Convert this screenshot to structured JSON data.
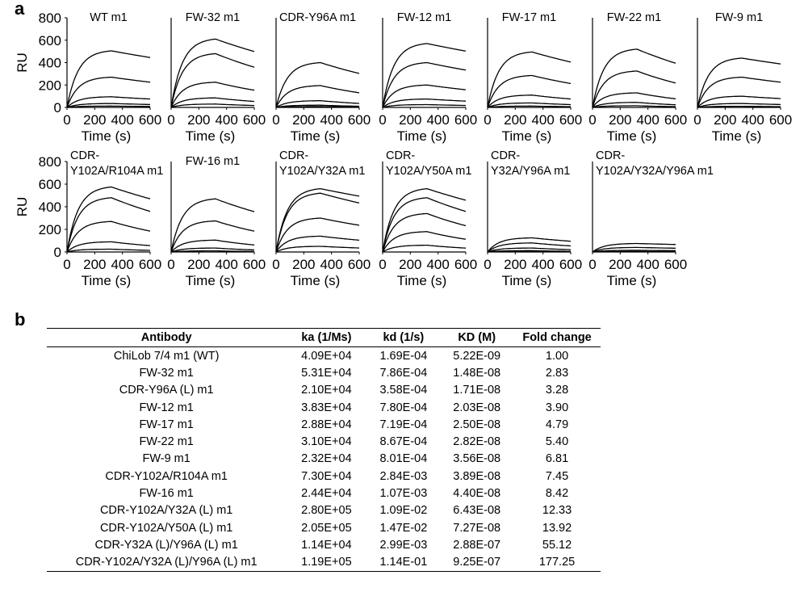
{
  "panel_labels": {
    "a": "a",
    "b": "b"
  },
  "colors": {
    "line": "#000000",
    "background": "#ffffff"
  },
  "chart_data": {
    "type": "line",
    "description_kind": "SPR sensorgram small multiples",
    "xlabel": "Time (s)",
    "ylabel": "RU",
    "xlim": [
      0,
      600
    ],
    "ylim": [
      0,
      800
    ],
    "xticks": [
      0,
      200,
      400,
      600
    ],
    "yticks": [
      0,
      200,
      400,
      600,
      800
    ],
    "dissociation_start": 320,
    "panels": [
      {
        "title": "WT m1",
        "row": 0,
        "col": 0,
        "peaks": [
          505,
          270,
          95,
          35,
          12
        ]
      },
      {
        "title": "FW-32 m1",
        "row": 0,
        "col": 1,
        "peaks": [
          610,
          480,
          225,
          85,
          30
        ]
      },
      {
        "title": "CDR-Y96A m1",
        "row": 0,
        "col": 2,
        "peaks": [
          400,
          195,
          60,
          20,
          8
        ]
      },
      {
        "title": "FW-12 m1",
        "row": 0,
        "col": 3,
        "peaks": [
          570,
          400,
          200,
          75,
          25
        ]
      },
      {
        "title": "FW-17 m1",
        "row": 0,
        "col": 4,
        "peaks": [
          495,
          285,
          110,
          40,
          12
        ]
      },
      {
        "title": "FW-22 m1",
        "row": 0,
        "col": 5,
        "peaks": [
          520,
          325,
          130,
          45,
          15
        ]
      },
      {
        "title": "FW-9 m1",
        "row": 0,
        "col": 6,
        "peaks": [
          440,
          270,
          100,
          35,
          10
        ]
      },
      {
        "title": "CDR-\nY102A/R104A m1",
        "row": 1,
        "col": 0,
        "peaks": [
          575,
          480,
          270,
          90,
          25
        ]
      },
      {
        "title": "FW-16 m1",
        "row": 1,
        "col": 1,
        "peaks": [
          470,
          275,
          105,
          35,
          10
        ]
      },
      {
        "title": "CDR-\nY102A/Y32A m1",
        "row": 1,
        "col": 2,
        "peaks": [
          560,
          520,
          300,
          140,
          50
        ]
      },
      {
        "title": "CDR-\nY102A/Y50A m1",
        "row": 1,
        "col": 3,
        "peaks": [
          560,
          480,
          340,
          180,
          60
        ]
      },
      {
        "title": "CDR-\nY32A/Y96A m1",
        "row": 1,
        "col": 4,
        "peaks": [
          125,
          80,
          35,
          12,
          5
        ]
      },
      {
        "title": "CDR-\nY102A/Y32A/Y96A m1",
        "row": 1,
        "col": 5,
        "peaks": [
          75,
          40,
          15,
          5,
          2
        ]
      }
    ]
  },
  "table": {
    "headers": [
      "Antibody",
      "ka (1/Ms)",
      "kd (1/s)",
      "KD (M)",
      "Fold change"
    ],
    "rows": [
      [
        "ChiLob 7/4 m1 (WT)",
        "4.09E+04",
        "1.69E-04",
        "5.22E-09",
        "1.00"
      ],
      [
        "FW-32 m1",
        "5.31E+04",
        "7.86E-04",
        "1.48E-08",
        "2.83"
      ],
      [
        "CDR-Y96A (L) m1",
        "2.10E+04",
        "3.58E-04",
        "1.71E-08",
        "3.28"
      ],
      [
        "FW-12 m1",
        "3.83E+04",
        "7.80E-04",
        "2.03E-08",
        "3.90"
      ],
      [
        "FW-17 m1",
        "2.88E+04",
        "7.19E-04",
        "2.50E-08",
        "4.79"
      ],
      [
        "FW-22 m1",
        "3.10E+04",
        "8.67E-04",
        "2.82E-08",
        "5.40"
      ],
      [
        "FW-9 m1",
        "2.32E+04",
        "8.01E-04",
        "3.56E-08",
        "6.81"
      ],
      [
        "CDR-Y102A/R104A m1",
        "7.30E+04",
        "2.84E-03",
        "3.89E-08",
        "7.45"
      ],
      [
        "FW-16 m1",
        "2.44E+04",
        "1.07E-03",
        "4.40E-08",
        "8.42"
      ],
      [
        "CDR-Y102A/Y32A (L) m1",
        "2.80E+05",
        "1.09E-02",
        "6.43E-08",
        "12.33"
      ],
      [
        "CDR-Y102A/Y50A (L) m1",
        "2.05E+05",
        "1.47E-02",
        "7.27E-08",
        "13.92"
      ],
      [
        "CDR-Y32A (L)/Y96A (L) m1",
        "1.14E+04",
        "2.99E-03",
        "2.88E-07",
        "55.12"
      ],
      [
        "CDR-Y102A/Y32A (L)/Y96A (L) m1",
        "1.19E+05",
        "1.14E-01",
        "9.25E-07",
        "177.25"
      ]
    ]
  }
}
